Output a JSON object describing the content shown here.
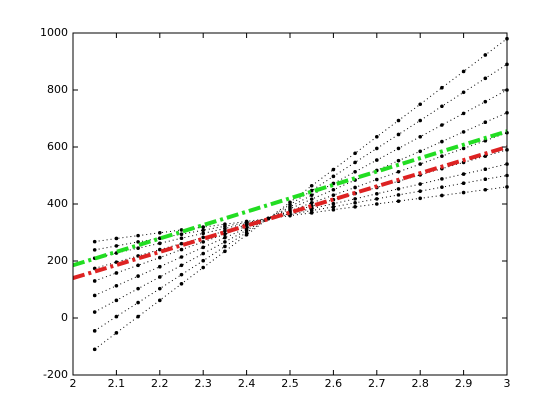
{
  "chart_data": {
    "type": "line",
    "xlim": [
      2,
      3
    ],
    "ylim": [
      -200,
      1000
    ],
    "xticks": [
      2,
      2.1,
      2.2,
      2.3,
      2.4,
      2.5,
      2.6,
      2.7,
      2.8,
      2.9,
      3
    ],
    "yticks": [
      -200,
      0,
      200,
      400,
      600,
      800,
      1000
    ],
    "grid": false,
    "x": [
      2.05,
      2.1,
      2.15,
      2.2,
      2.25,
      2.3,
      2.35,
      2.4,
      2.45,
      2.5,
      2.55,
      2.6,
      2.65,
      2.7,
      2.75,
      2.8,
      2.85,
      2.9,
      2.95,
      3
    ],
    "series": [
      {
        "color": "#000000",
        "line_style": "dotted",
        "marker": "point",
        "values": [
          -110,
          -52,
          5,
          62,
          120,
          177,
          234,
          292,
          349,
          406,
          464,
          521,
          578,
          636,
          693,
          750,
          808,
          865,
          923,
          980
        ]
      },
      {
        "color": "#000000",
        "line_style": "dotted",
        "marker": "point",
        "values": [
          -45,
          5,
          54,
          103,
          152,
          201,
          251,
          300,
          349,
          398,
          447,
          497,
          546,
          595,
          644,
          693,
          743,
          792,
          841,
          890
        ]
      },
      {
        "color": "#000000",
        "line_style": "dotted",
        "marker": "point",
        "values": [
          21,
          62,
          103,
          144,
          185,
          226,
          267,
          308,
          349,
          390,
          431,
          472,
          513,
          554,
          595,
          636,
          677,
          718,
          759,
          800
        ]
      },
      {
        "color": "#000000",
        "line_style": "dotted",
        "marker": "point",
        "values": [
          79,
          113,
          147,
          180,
          214,
          248,
          282,
          315,
          349,
          383,
          417,
          450,
          484,
          518,
          552,
          585,
          619,
          653,
          687,
          720
        ]
      },
      {
        "color": "#000000",
        "line_style": "dotted",
        "marker": "point",
        "values": [
          130,
          158,
          185,
          212,
          240,
          267,
          294,
          322,
          349,
          376,
          404,
          431,
          458,
          486,
          513,
          540,
          568,
          595,
          622,
          650
        ]
      },
      {
        "color": "#000000",
        "line_style": "dotted",
        "marker": "point",
        "values": [
          174,
          196,
          218,
          240,
          261,
          283,
          305,
          327,
          349,
          371,
          393,
          415,
          437,
          458,
          480,
          502,
          524,
          546,
          568,
          590
        ]
      },
      {
        "color": "#000000",
        "line_style": "dotted",
        "marker": "point",
        "values": [
          210,
          228,
          245,
          262,
          280,
          297,
          314,
          332,
          349,
          366,
          384,
          401,
          418,
          436,
          453,
          470,
          488,
          505,
          522,
          540
        ]
      },
      {
        "color": "#000000",
        "line_style": "dotted",
        "marker": "point",
        "values": [
          239,
          253,
          267,
          280,
          294,
          308,
          322,
          335,
          349,
          363,
          377,
          390,
          404,
          418,
          432,
          445,
          459,
          473,
          487,
          500
        ]
      },
      {
        "color": "#000000",
        "line_style": "dotted",
        "marker": "point",
        "values": [
          268,
          279,
          289,
          299,
          309,
          319,
          329,
          339,
          349,
          359,
          369,
          380,
          390,
          400,
          410,
          420,
          430,
          440,
          450,
          460
        ]
      },
      {
        "color": "#22dd22",
        "line_style": "dashdot",
        "x": [
          2,
          3
        ],
        "values": [
          185,
          655
        ]
      },
      {
        "color": "#dd2222",
        "line_style": "dashdot",
        "x": [
          2,
          3
        ],
        "values": [
          140,
          600
        ]
      }
    ]
  }
}
